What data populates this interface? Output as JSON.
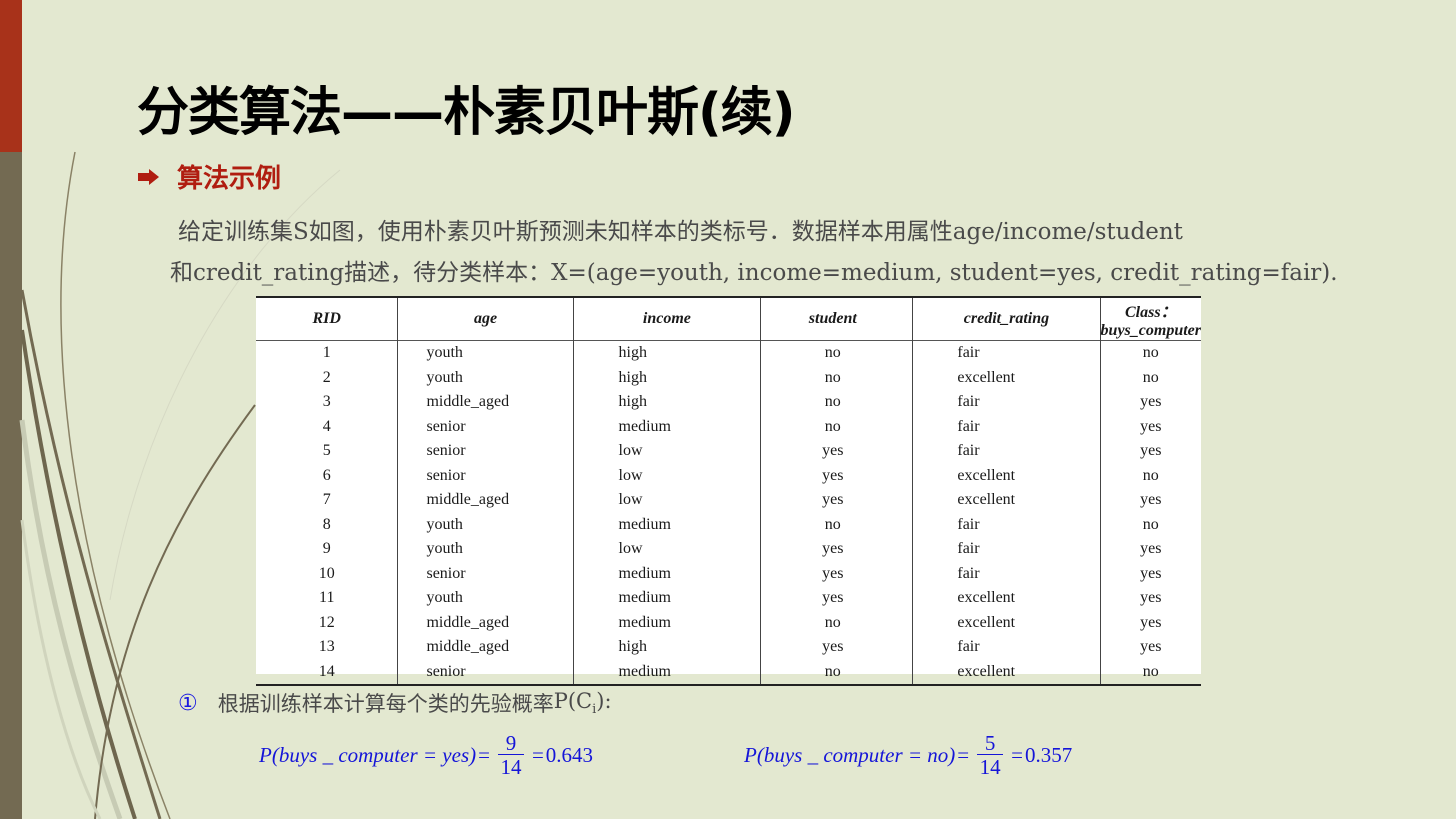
{
  "title": "分类算法——朴素贝叶斯(续)",
  "section": {
    "label": "算法示例"
  },
  "intro": {
    "line1": "给定训练集S如图，使用朴素贝叶斯预测未知样本的类标号．数据样本用属性age/income/student",
    "line2": "和credit_rating描述，待分类样本：X=(age=youth, income=medium, student=yes, credit_rating=fair)."
  },
  "table": {
    "headers": [
      "RID",
      "age",
      "income",
      "student",
      "credit_rating",
      "Class：buys_computer"
    ],
    "rows": [
      [
        "1",
        "youth",
        "high",
        "no",
        "fair",
        "no"
      ],
      [
        "2",
        "youth",
        "high",
        "no",
        "excellent",
        "no"
      ],
      [
        "3",
        "middle_aged",
        "high",
        "no",
        "fair",
        "yes"
      ],
      [
        "4",
        "senior",
        "medium",
        "no",
        "fair",
        "yes"
      ],
      [
        "5",
        "senior",
        "low",
        "yes",
        "fair",
        "yes"
      ],
      [
        "6",
        "senior",
        "low",
        "yes",
        "excellent",
        "no"
      ],
      [
        "7",
        "middle_aged",
        "low",
        "yes",
        "excellent",
        "yes"
      ],
      [
        "8",
        "youth",
        "medium",
        "no",
        "fair",
        "no"
      ],
      [
        "9",
        "youth",
        "low",
        "yes",
        "fair",
        "yes"
      ],
      [
        "10",
        "senior",
        "medium",
        "yes",
        "fair",
        "yes"
      ],
      [
        "11",
        "youth",
        "medium",
        "yes",
        "excellent",
        "yes"
      ],
      [
        "12",
        "middle_aged",
        "medium",
        "no",
        "excellent",
        "yes"
      ],
      [
        "13",
        "middle_aged",
        "high",
        "yes",
        "fair",
        "yes"
      ],
      [
        "14",
        "senior",
        "medium",
        "no",
        "excellent",
        "no"
      ]
    ]
  },
  "step1": {
    "num": "①",
    "text": "根据训练样本计算每个类的先验概率",
    "formula_prefix": "P(C",
    "formula_sub": "i",
    "formula_suffix": "):"
  },
  "formulas": [
    {
      "expr": "P(buys _ computer = yes)",
      "eq1": "=",
      "num": "9",
      "den": "14",
      "eq2": "=",
      "result": "0.643"
    },
    {
      "expr": "P(buys _ computer = no)",
      "eq1": "=",
      "num": "5",
      "den": "14",
      "eq2": "=",
      "result": "0.357"
    }
  ],
  "colors": {
    "background": "#e3e8d0",
    "left_bar": "#736a52",
    "left_bar_accent": "#a8321a",
    "section_red": "#b01d10",
    "formula_blue": "#1515d8",
    "body_text": "#4a4a4a"
  },
  "icons": {
    "bullet": "right-arrow-icon",
    "decoration": "curved-lines-decoration"
  }
}
